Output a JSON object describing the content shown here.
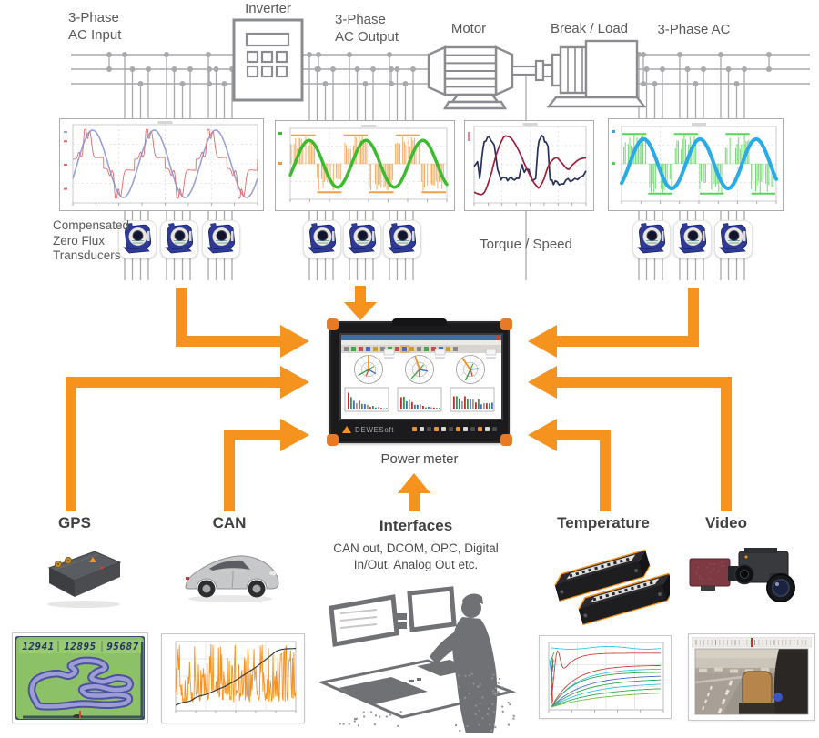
{
  "colors": {
    "orange": "#F6921E",
    "wire": "#A7A9AC",
    "machine_outline": "#8A8C8F",
    "text": "#58595B",
    "heading": "#414042",
    "transducer_blue": "#2E3A96"
  },
  "top_labels": {
    "ac_input_line1": "3-Phase",
    "ac_input_line2": "AC Input",
    "inverter": "Inverter",
    "ac_output_line1": "3-Phase",
    "ac_output_line2": "AC Output",
    "motor": "Motor",
    "break_load": "Break / Load",
    "three_phase_ac": "3-Phase AC"
  },
  "transducers": {
    "label_line1": "Compensated",
    "label_line2": "Zero Flux",
    "label_line3": "Transducers"
  },
  "torque_speed_label": "Torque / Speed",
  "power_meter": {
    "label": "Power meter",
    "brand": "DEWESoft"
  },
  "bottom_sections": {
    "gps": {
      "label": "GPS",
      "display_values": [
        "12941",
        "12895",
        "95687"
      ]
    },
    "can": {
      "label": "CAN"
    },
    "interfaces": {
      "label": "Interfaces",
      "description": "CAN out, DCOM, OPC, Digital In/Out, Analog Out etc."
    },
    "temperature": {
      "label": "Temperature"
    },
    "video": {
      "label": "Video"
    }
  },
  "waveform_charts": [
    {
      "name": "ac-input-waveform",
      "signals": [
        "voltage sine (blue)",
        "current (red)"
      ]
    },
    {
      "name": "ac-output-waveform",
      "signals": [
        "pwm voltage (orange)",
        "current sine (green)"
      ]
    },
    {
      "name": "torque-speed-curves",
      "signals": [
        "torque (navy)",
        "speed (dark red)"
      ]
    },
    {
      "name": "three-phase-ac-waveform",
      "signals": [
        "pwm voltage (green)",
        "current sine (cyan)"
      ]
    }
  ]
}
